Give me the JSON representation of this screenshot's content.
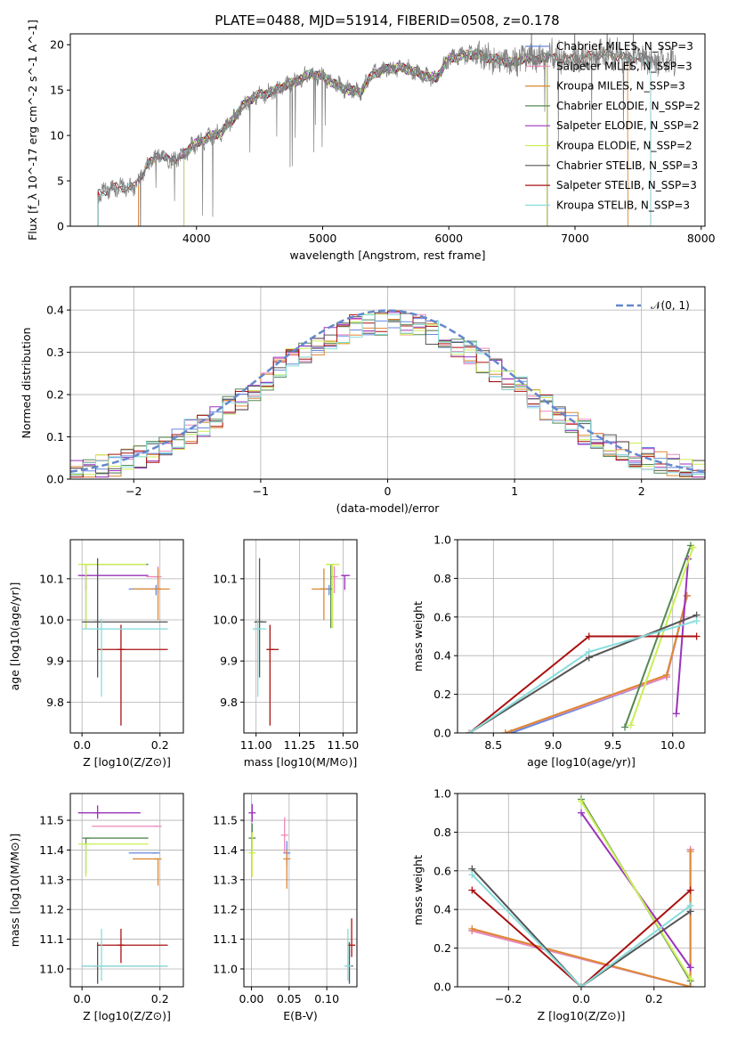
{
  "colors": {
    "Chabrier MILES": "#6688dd",
    "Salpeter MILES": "#ee88bb",
    "Kroupa MILES": "#dd8833",
    "Chabrier ELODIE": "#558855",
    "Salpeter ELODIE": "#9933bb",
    "Kroupa ELODIE": "#ccee55",
    "Chabrier STELIB": "#555555",
    "Salpeter STELIB": "#aa1111",
    "Kroupa STELIB": "#88dddd"
  },
  "chart_data": [
    {
      "id": "spectrum",
      "type": "line",
      "title": "PLATE=0488, MJD=51914, FIBERID=0508, z=0.178",
      "xlabel": "wavelength [Angstrom, rest frame]",
      "ylabel": "Flux [f_λ 10^-17 erg cm^-2 s^-1 A^-1]",
      "xlim": [
        3000,
        8030
      ],
      "ylim": [
        0,
        21.2
      ],
      "xticks": [
        4000,
        5000,
        6000,
        7000,
        8000
      ],
      "yticks": [
        0,
        5,
        10,
        15,
        20
      ],
      "grid": false,
      "legend_position": "upper-right",
      "data_curve": {
        "color": "#808080",
        "x": [
          3220,
          3300,
          3400,
          3500,
          3600,
          3700,
          3800,
          3900,
          4000,
          4100,
          4200,
          4300,
          4400,
          4500,
          4600,
          4700,
          4800,
          4900,
          5000,
          5100,
          5200,
          5300,
          5400,
          5500,
          5600,
          5700,
          5800,
          5900,
          6000,
          6100,
          6200,
          6300,
          6400,
          6500,
          6600,
          6700,
          6800,
          6900,
          7000,
          7100,
          7200,
          7300,
          7400,
          7500,
          7600,
          7700,
          7800
        ],
        "y": [
          3.5,
          4.1,
          4.3,
          4.2,
          6.5,
          8.0,
          7.2,
          8.0,
          9.2,
          9.8,
          10.4,
          12.0,
          13.8,
          14.5,
          14.8,
          15.5,
          16.0,
          16.8,
          16.5,
          15.6,
          15.0,
          14.8,
          16.8,
          17.3,
          17.5,
          17.2,
          16.6,
          16.3,
          18.5,
          18.8,
          19.0,
          18.6,
          18.3,
          18.0,
          18.5,
          18.4,
          18.6,
          18.5,
          18.4,
          18.7,
          19.0,
          18.9,
          18.5,
          18.6,
          18.3,
          18.2,
          18.1
        ]
      },
      "series": [
        {
          "name": "Chabrier MILES, N_SSP=3",
          "x_range": [
            3540,
            6780
          ]
        },
        {
          "name": "Salpeter MILES, N_SSP=3",
          "x_range": [
            3540,
            6780
          ]
        },
        {
          "name": "Kroupa MILES, N_SSP=3",
          "x_range": [
            3540,
            7420
          ]
        },
        {
          "name": "Chabrier ELODIE, N_SSP=2",
          "x_range": [
            3900,
            6780
          ]
        },
        {
          "name": "Salpeter ELODIE, N_SSP=2",
          "x_range": [
            3900,
            6780
          ]
        },
        {
          "name": "Kroupa ELODIE, N_SSP=2",
          "x_range": [
            3900,
            6780
          ]
        },
        {
          "name": "Chabrier STELIB, N_SSP=3",
          "x_range": [
            3220,
            7600
          ]
        },
        {
          "name": "Salpeter STELIB, N_SSP=3",
          "x_range": [
            3220,
            7600
          ]
        },
        {
          "name": "Kroupa STELIB, N_SSP=3",
          "x_range": [
            3220,
            7600
          ]
        }
      ]
    },
    {
      "id": "residuals",
      "type": "histogram",
      "xlabel": "(data-model)/error",
      "ylabel": "Normed distribution",
      "xlim": [
        -2.5,
        2.5
      ],
      "ylim": [
        0,
        0.455
      ],
      "xticks": [
        -2,
        -1,
        0,
        1,
        2
      ],
      "yticks": [
        0.0,
        0.1,
        0.2,
        0.3,
        0.4
      ],
      "grid": true,
      "legend_position": "upper-right",
      "reference_curve": {
        "name": "N(0,1)",
        "label": "𝒩(0, 1)",
        "color": "#6688cc",
        "style": "dashed",
        "mean": 0,
        "sigma": 1
      },
      "bin_edges_range": [
        -2.5,
        2.5
      ],
      "bin_count": 50
    },
    {
      "id": "age_vs_Z",
      "type": "errorbar",
      "xlabel": "Z [log10(Z/Z⊙)]",
      "ylabel": "age  [log10(age/yr)]",
      "xlim": [
        -0.03,
        0.26
      ],
      "ylim": [
        9.725,
        10.195
      ],
      "xticks": [
        0.0,
        0.2
      ],
      "yticks": [
        9.8,
        9.9,
        10.0,
        10.1
      ],
      "grid": true,
      "points": [
        {
          "model": "Chabrier MILES",
          "x": 0.19,
          "xerr": [
            0.07,
            0.0
          ],
          "y": 10.075,
          "yerr": [
            0.015,
            0.01
          ]
        },
        {
          "model": "Salpeter MILES",
          "x": 0.195,
          "xerr": [
            0.03,
            0.0
          ],
          "y": 10.105,
          "yerr": [
            0.04,
            0.025
          ]
        },
        {
          "model": "Kroupa MILES",
          "x": 0.195,
          "xerr": [
            0.065,
            0.03
          ],
          "y": 10.075,
          "yerr": [
            0.075,
            0.05
          ]
        },
        {
          "model": "Chabrier ELODIE",
          "x": 0.01,
          "xerr": [
            0.0,
            0.16
          ],
          "y": 10.135,
          "yerr": [
            0.155,
            0.0
          ]
        },
        {
          "model": "Salpeter ELODIE",
          "x": 0.01,
          "xerr": [
            0.02,
            0.16
          ],
          "y": 10.108,
          "yerr": [
            0.035,
            0.0
          ]
        },
        {
          "model": "Kroupa ELODIE",
          "x": 0.01,
          "xerr": [
            0.02,
            0.155
          ],
          "y": 10.135,
          "yerr": [
            0.155,
            0.0
          ]
        },
        {
          "model": "Chabrier STELIB",
          "x": 0.04,
          "xerr": [
            0.04,
            0.18
          ],
          "y": 9.995,
          "yerr": [
            0.135,
            0.155
          ]
        },
        {
          "model": "Salpeter STELIB",
          "x": 0.1,
          "xerr": [
            0.06,
            0.12
          ],
          "y": 9.928,
          "yerr": [
            0.185,
            0.06
          ]
        },
        {
          "model": "Kroupa STELIB",
          "x": 0.05,
          "xerr": [
            0.05,
            0.17
          ],
          "y": 9.978,
          "yerr": [
            0.165,
            0.025
          ]
        }
      ]
    },
    {
      "id": "age_vs_mass",
      "type": "errorbar",
      "xlabel": "mass [log10(M/M⊙)]",
      "xlim": [
        10.93,
        11.58
      ],
      "ylim": [
        9.725,
        10.195
      ],
      "xticks": [
        11.0,
        11.25,
        11.5
      ],
      "yticks": [
        9.8,
        9.9,
        10.0,
        10.1
      ],
      "grid": true,
      "points": [
        {
          "model": "Chabrier MILES",
          "x": 11.42,
          "xerr": [
            0.05,
            0.0
          ],
          "y": 10.075,
          "yerr": [
            0.015,
            0.01
          ]
        },
        {
          "model": "Salpeter MILES",
          "x": 11.45,
          "xerr": [
            0.0,
            0.0
          ],
          "y": 10.105,
          "yerr": [
            0.04,
            0.025
          ]
        },
        {
          "model": "Kroupa MILES",
          "x": 11.39,
          "xerr": [
            0.07,
            0.0
          ],
          "y": 10.075,
          "yerr": [
            0.075,
            0.05
          ]
        },
        {
          "model": "Chabrier ELODIE",
          "x": 11.43,
          "xerr": [
            0.0,
            0.02
          ],
          "y": 10.135,
          "yerr": [
            0.155,
            0.0
          ]
        },
        {
          "model": "Salpeter ELODIE",
          "x": 11.51,
          "xerr": [
            0.02,
            0.03
          ],
          "y": 10.108,
          "yerr": [
            0.035,
            0.0
          ]
        },
        {
          "model": "Kroupa ELODIE",
          "x": 11.44,
          "xerr": [
            0.04,
            0.04
          ],
          "y": 10.135,
          "yerr": [
            0.155,
            0.0
          ]
        },
        {
          "model": "Chabrier STELIB",
          "x": 11.02,
          "xerr": [
            0.03,
            0.04
          ],
          "y": 9.995,
          "yerr": [
            0.135,
            0.155
          ]
        },
        {
          "model": "Salpeter STELIB",
          "x": 11.08,
          "xerr": [
            0.0,
            0.05
          ],
          "y": 9.928,
          "yerr": [
            0.185,
            0.06
          ]
        },
        {
          "model": "Kroupa STELIB",
          "x": 11.01,
          "xerr": [
            0.03,
            0.05
          ],
          "y": 9.978,
          "yerr": [
            0.165,
            0.025
          ]
        }
      ]
    },
    {
      "id": "massweight_vs_age",
      "type": "line",
      "xlabel": "age  [log10(age/yr)]",
      "ylabel": "mass weight",
      "xlim": [
        8.2,
        10.27
      ],
      "ylim": [
        0,
        1.0
      ],
      "xticks": [
        8.5,
        9.0,
        9.5,
        10.0
      ],
      "yticks": [
        0.0,
        0.2,
        0.4,
        0.6,
        0.8,
        1.0
      ],
      "grid": true,
      "series": [
        {
          "model": "Chabrier MILES",
          "x": [
            8.65,
            9.95,
            10.12
          ],
          "y": [
            0.0,
            0.29,
            0.71
          ]
        },
        {
          "model": "Salpeter MILES",
          "x": [
            8.6,
            9.95,
            10.12
          ],
          "y": [
            0.0,
            0.29,
            0.71
          ]
        },
        {
          "model": "Kroupa MILES",
          "x": [
            8.6,
            9.95,
            10.12
          ],
          "y": [
            0.0,
            0.3,
            0.71
          ]
        },
        {
          "model": "Chabrier ELODIE",
          "x": [
            9.6,
            10.15
          ],
          "y": [
            0.03,
            0.97
          ]
        },
        {
          "model": "Salpeter ELODIE",
          "x": [
            10.03,
            10.13
          ],
          "y": [
            0.1,
            0.9
          ]
        },
        {
          "model": "Kroupa ELODIE",
          "x": [
            9.65,
            10.17
          ],
          "y": [
            0.04,
            0.96
          ]
        },
        {
          "model": "Chabrier STELIB",
          "x": [
            8.3,
            9.3,
            10.2
          ],
          "y": [
            0.0,
            0.39,
            0.61
          ]
        },
        {
          "model": "Salpeter STELIB",
          "x": [
            8.3,
            9.3,
            10.2
          ],
          "y": [
            0.0,
            0.5,
            0.5
          ]
        },
        {
          "model": "Kroupa STELIB",
          "x": [
            8.3,
            9.3,
            10.2
          ],
          "y": [
            0.0,
            0.42,
            0.58
          ]
        }
      ]
    },
    {
      "id": "mass_vs_Z",
      "type": "errorbar",
      "xlabel": "Z [log10(Z/Z⊙)]",
      "ylabel": "mass [log10(M/M⊙)]",
      "xlim": [
        -0.03,
        0.26
      ],
      "ylim": [
        10.94,
        11.59
      ],
      "xticks": [
        0.0,
        0.2
      ],
      "yticks": [
        11.0,
        11.1,
        11.2,
        11.3,
        11.4,
        11.5
      ],
      "grid": true,
      "points": [
        {
          "model": "Chabrier MILES",
          "x": 0.19,
          "xerr": [
            0.07,
            0.0
          ],
          "y": 11.39,
          "yerr": [
            0.0,
            0.0
          ]
        },
        {
          "model": "Salpeter MILES",
          "x": 0.195,
          "xerr": [
            0.17,
            0.0
          ],
          "y": 11.48,
          "yerr": [
            0.0,
            0.0
          ]
        },
        {
          "model": "Kroupa MILES",
          "x": 0.195,
          "xerr": [
            0.065,
            0.0
          ],
          "y": 11.37,
          "yerr": [
            0.09,
            0.0
          ]
        },
        {
          "model": "Chabrier ELODIE",
          "x": 0.01,
          "xerr": [
            0.0,
            0.16
          ],
          "y": 11.44,
          "yerr": [
            0.12,
            0.0
          ]
        },
        {
          "model": "Salpeter ELODIE",
          "x": 0.04,
          "xerr": [
            0.05,
            0.11
          ],
          "y": 11.525,
          "yerr": [
            0.02,
            0.025
          ]
        },
        {
          "model": "Kroupa ELODIE",
          "x": 0.01,
          "xerr": [
            0.02,
            0.16
          ],
          "y": 11.42,
          "yerr": [
            0.11,
            0.0
          ]
        },
        {
          "model": "Chabrier STELIB",
          "x": 0.04,
          "xerr": [
            0.04,
            0.18
          ],
          "y": 11.01,
          "yerr": [
            0.06,
            0.08
          ]
        },
        {
          "model": "Salpeter STELIB",
          "x": 0.1,
          "xerr": [
            0.06,
            0.12
          ],
          "y": 11.08,
          "yerr": [
            0.06,
            0.055
          ]
        },
        {
          "model": "Kroupa STELIB",
          "x": 0.05,
          "xerr": [
            0.05,
            0.17
          ],
          "y": 11.01,
          "yerr": [
            0.05,
            0.125
          ]
        }
      ]
    },
    {
      "id": "mass_vs_ebv",
      "type": "errorbar",
      "xlabel": "E(B-V)",
      "xlim": [
        -0.01,
        0.14
      ],
      "ylim": [
        10.94,
        11.59
      ],
      "xticks": [
        0.0,
        0.05,
        0.1
      ],
      "yticks": [
        11.0,
        11.1,
        11.2,
        11.3,
        11.4,
        11.5
      ],
      "grid": true,
      "points": [
        {
          "model": "Chabrier MILES",
          "x": 0.047,
          "xerr": [
            0.0,
            0.0
          ],
          "y": 11.39,
          "yerr": [
            0.04,
            0.04
          ]
        },
        {
          "model": "Salpeter MILES",
          "x": 0.044,
          "xerr": [
            0.0,
            0.0
          ],
          "y": 11.45,
          "yerr": [
            0.06,
            0.06
          ]
        },
        {
          "model": "Kroupa MILES",
          "x": 0.047,
          "xerr": [
            0.0,
            0.0
          ],
          "y": 11.37,
          "yerr": [
            0.1,
            0.03
          ]
        },
        {
          "model": "Chabrier ELODIE",
          "x": 0.001,
          "xerr": [
            0.0,
            0.0
          ],
          "y": 11.44,
          "yerr": [
            0.05,
            0.05
          ]
        },
        {
          "model": "Salpeter ELODIE",
          "x": 0.001,
          "xerr": [
            0.0,
            0.0
          ],
          "y": 11.525,
          "yerr": [
            0.03,
            0.03
          ]
        },
        {
          "model": "Kroupa ELODIE",
          "x": 0.001,
          "xerr": [
            0.0,
            0.0
          ],
          "y": 11.39,
          "yerr": [
            0.08,
            0.07
          ]
        },
        {
          "model": "Chabrier STELIB",
          "x": 0.13,
          "xerr": [
            0.0,
            0.0
          ],
          "y": 11.01,
          "yerr": [
            0.06,
            0.08
          ]
        },
        {
          "model": "Salpeter STELIB",
          "x": 0.133,
          "xerr": [
            0.0,
            0.0
          ],
          "y": 11.08,
          "yerr": [
            0.04,
            0.09
          ]
        },
        {
          "model": "Kroupa STELIB",
          "x": 0.128,
          "xerr": [
            0.0,
            0.0
          ],
          "y": 11.01,
          "yerr": [
            0.05,
            0.125
          ]
        }
      ]
    },
    {
      "id": "massweight_vs_Z",
      "type": "line",
      "xlabel": "Z [log10(Z/Z⊙)]",
      "ylabel": "mass weight",
      "xlim": [
        -0.34,
        0.34
      ],
      "ylim": [
        0,
        1.0
      ],
      "xticks": [
        -0.2,
        0.0,
        0.2
      ],
      "yticks": [
        0.0,
        0.2,
        0.4,
        0.6,
        0.8,
        1.0
      ],
      "grid": true,
      "series": [
        {
          "model": "Chabrier MILES",
          "x": [
            -0.3,
            0.3,
            0.3
          ],
          "y": [
            0.29,
            0.0,
            0.71
          ]
        },
        {
          "model": "Salpeter MILES",
          "x": [
            -0.3,
            0.3,
            0.3
          ],
          "y": [
            0.29,
            0.0,
            0.71
          ]
        },
        {
          "model": "Kroupa MILES",
          "x": [
            -0.3,
            0.3,
            0.3
          ],
          "y": [
            0.3,
            0.0,
            0.7
          ]
        },
        {
          "model": "Chabrier ELODIE",
          "x": [
            0.0,
            0.3
          ],
          "y": [
            0.97,
            0.03
          ]
        },
        {
          "model": "Salpeter ELODIE",
          "x": [
            0.0,
            0.3
          ],
          "y": [
            0.9,
            0.1
          ]
        },
        {
          "model": "Kroupa ELODIE",
          "x": [
            0.0,
            0.3
          ],
          "y": [
            0.96,
            0.04
          ]
        },
        {
          "model": "Chabrier STELIB",
          "x": [
            -0.3,
            0.0,
            0.3
          ],
          "y": [
            0.61,
            0.0,
            0.39
          ]
        },
        {
          "model": "Salpeter STELIB",
          "x": [
            -0.3,
            0.0,
            0.3
          ],
          "y": [
            0.5,
            0.0,
            0.5
          ]
        },
        {
          "model": "Kroupa STELIB",
          "x": [
            -0.3,
            0.0,
            0.3
          ],
          "y": [
            0.58,
            0.0,
            0.42
          ]
        }
      ]
    }
  ]
}
